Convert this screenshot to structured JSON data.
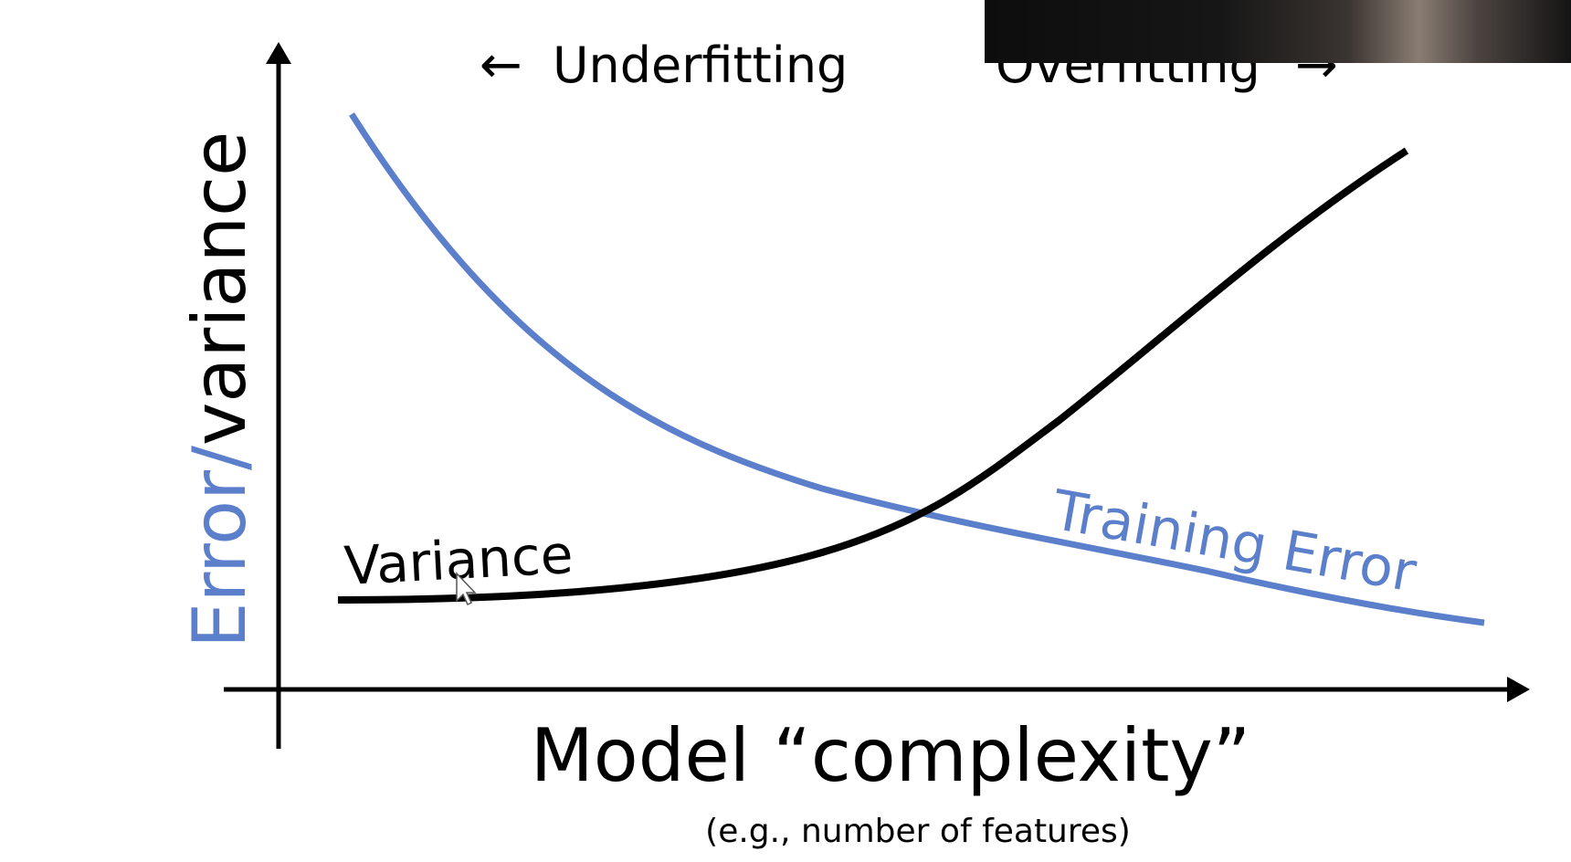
{
  "diagram": {
    "y_axis_label_part1": "Error/",
    "y_axis_label_part2": "variance",
    "x_axis_label": "Model “complexity”",
    "x_axis_sublabel": "(e.g., number of features)",
    "underfitting_label": "Underfitting",
    "overfitting_label": "Overfitting",
    "variance_curve_label": "Variance",
    "training_error_curve_label": "Training Error",
    "left_arrow_glyph": "←",
    "right_arrow_glyph": "→"
  },
  "colors": {
    "training_error": "#5b7fcb",
    "variance": "#000000",
    "axes": "#000000",
    "background": "#ffffff"
  },
  "overlays": {
    "webcam": "webcam-video-feed"
  }
}
